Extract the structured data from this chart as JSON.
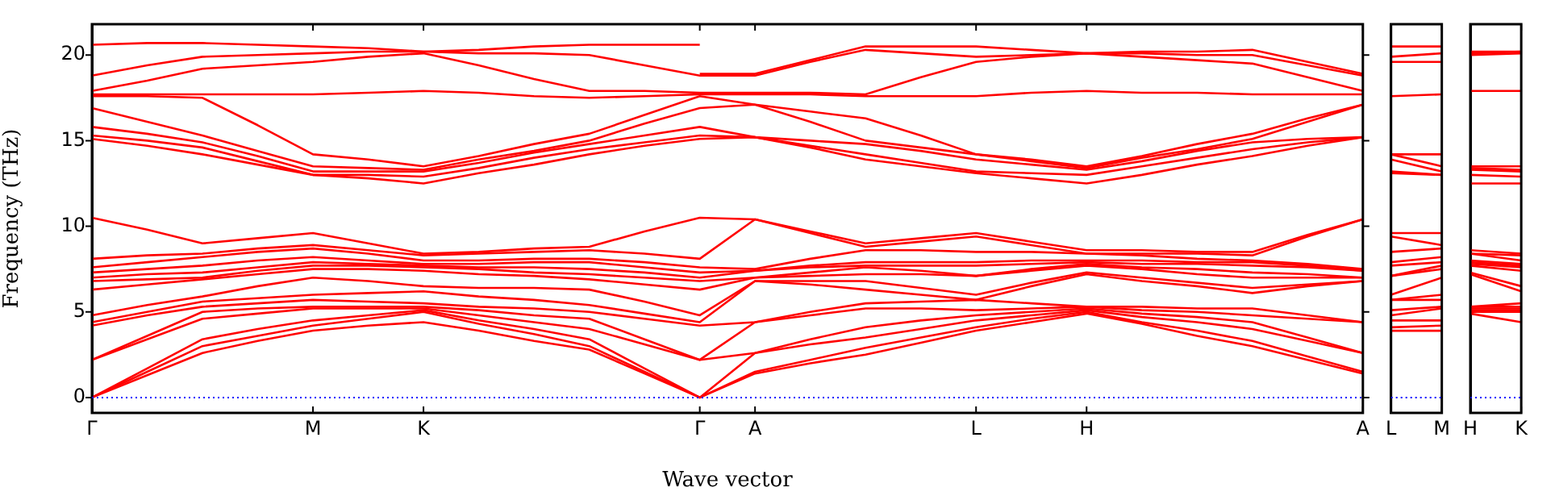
{
  "chart_data": [
    {
      "type": "line",
      "xlabel": "Wave vector",
      "ylabel": "Frequency (THz)",
      "categories": [
        "Γ",
        null,
        null,
        null,
        "M",
        null,
        "K",
        null,
        null,
        null,
        null,
        "Γ",
        "A",
        null,
        null,
        null,
        "L",
        null,
        "H",
        null,
        null,
        null,
        null,
        "A"
      ],
      "ylim": [
        -0.9,
        21.8
      ],
      "yticks": [
        0,
        5,
        10,
        15,
        20
      ],
      "ref_lines": [
        {
          "axis": "y",
          "value": 0,
          "color": "#0000ff",
          "line_style": "dotted"
        }
      ],
      "series": [
        {
          "color": "#ff0000",
          "values": [
            0,
            1.3,
            2.6,
            3.3,
            3.9,
            4.2,
            4.4,
            3.9,
            3.3,
            2.8,
            1.4,
            0,
            1.4,
            2.0,
            2.5,
            3.2,
            3.9,
            4.4,
            4.9,
            4.3,
            3.6,
            3.0,
            2.2,
            1.4
          ]
        },
        {
          "color": "#ff0000",
          "values": [
            0,
            1.5,
            3.0,
            3.6,
            4.2,
            4.6,
            5.0,
            4.3,
            3.7,
            3.0,
            1.5,
            0,
            1.5,
            2.2,
            2.9,
            3.5,
            4.1,
            4.6,
            5.0,
            4.4,
            3.9,
            3.3,
            2.4,
            1.5
          ]
        },
        {
          "color": "#ff0000",
          "values": [
            0,
            1.7,
            3.4,
            4.0,
            4.5,
            4.8,
            5.1,
            4.5,
            4.0,
            3.4,
            1.7,
            0,
            2.6,
            3.1,
            3.5,
            4.0,
            4.5,
            4.8,
            5.1,
            4.7,
            4.4,
            4.0,
            3.3,
            2.6
          ]
        },
        {
          "color": "#ff0000",
          "values": [
            2.2,
            3.4,
            4.6,
            4.9,
            5.2,
            5.2,
            5.2,
            4.8,
            4.4,
            4.0,
            3.1,
            2.2,
            2.6,
            3.4,
            4.1,
            4.5,
            4.8,
            5.0,
            5.2,
            4.9,
            4.7,
            4.4,
            3.5,
            2.6
          ]
        },
        {
          "color": "#ff0000",
          "values": [
            2.2,
            3.6,
            5.0,
            5.2,
            5.3,
            5.3,
            5.3,
            5.1,
            4.8,
            4.6,
            3.4,
            2.2,
            4.4,
            4.8,
            5.2,
            5.2,
            5.1,
            5.2,
            5.3,
            5.1,
            5.0,
            4.8,
            4.6,
            4.4
          ]
        },
        {
          "color": "#ff0000",
          "values": [
            4.2,
            4.8,
            5.3,
            5.5,
            5.7,
            5.6,
            5.5,
            5.3,
            5.2,
            5.0,
            4.6,
            4.2,
            4.4,
            5.0,
            5.5,
            5.6,
            5.7,
            5.5,
            5.3,
            5.3,
            5.2,
            5.2,
            4.8,
            4.4
          ]
        },
        {
          "color": "#ff0000",
          "values": [
            4.4,
            5.0,
            5.6,
            5.8,
            6.0,
            6.1,
            6.2,
            5.9,
            5.7,
            5.4,
            4.9,
            4.4,
            6.8,
            6.6,
            6.3,
            6.0,
            5.7,
            6.5,
            7.2,
            6.8,
            6.5,
            6.1,
            6.5,
            6.8
          ]
        },
        {
          "color": "#ff0000",
          "values": [
            4.8,
            5.4,
            5.9,
            6.5,
            7.0,
            6.8,
            6.5,
            6.4,
            6.4,
            6.3,
            5.6,
            4.8,
            6.8,
            6.8,
            6.8,
            6.4,
            6.0,
            6.7,
            7.3,
            7.0,
            6.7,
            6.4,
            6.6,
            6.8
          ]
        },
        {
          "color": "#ff0000",
          "values": [
            6.3,
            6.6,
            6.9,
            7.2,
            7.5,
            7.5,
            7.4,
            7.2,
            7.1,
            6.9,
            6.6,
            6.3,
            7.0,
            7.1,
            7.2,
            7.2,
            7.1,
            7.4,
            7.7,
            7.5,
            7.2,
            7.0,
            7.0,
            7.0
          ]
        },
        {
          "color": "#ff0000",
          "values": [
            6.8,
            6.9,
            7.0,
            7.4,
            7.7,
            7.7,
            7.6,
            7.5,
            7.3,
            7.2,
            7.0,
            6.8,
            7.0,
            7.3,
            7.6,
            7.4,
            7.1,
            7.5,
            7.8,
            7.6,
            7.5,
            7.3,
            7.2,
            7.0
          ]
        },
        {
          "color": "#ff0000",
          "values": [
            7.0,
            7.2,
            7.3,
            7.6,
            7.9,
            7.8,
            7.7,
            7.6,
            7.6,
            7.5,
            7.3,
            7.0,
            7.4,
            7.6,
            7.7,
            7.7,
            7.7,
            7.8,
            7.9,
            7.8,
            7.8,
            7.7,
            7.6,
            7.4
          ]
        },
        {
          "color": "#ff0000",
          "values": [
            7.3,
            7.5,
            7.7,
            8.0,
            8.2,
            8.0,
            7.8,
            7.8,
            7.9,
            7.9,
            7.6,
            7.3,
            7.4,
            7.7,
            7.9,
            7.9,
            7.9,
            8.0,
            8.0,
            8.0,
            7.9,
            7.9,
            7.7,
            7.4
          ]
        },
        {
          "color": "#ff0000",
          "values": [
            7.6,
            7.9,
            8.2,
            8.5,
            8.7,
            8.4,
            8.0,
            8.0,
            8.1,
            8.1,
            7.9,
            7.6,
            7.5,
            8.1,
            8.6,
            8.6,
            8.5,
            8.5,
            8.4,
            8.3,
            8.1,
            8.0,
            7.8,
            7.5
          ]
        },
        {
          "color": "#ff0000",
          "values": [
            8.1,
            8.3,
            8.4,
            8.7,
            8.9,
            8.6,
            8.3,
            8.4,
            8.5,
            8.6,
            8.4,
            8.1,
            10.4,
            9.6,
            8.8,
            9.1,
            9.4,
            8.9,
            8.4,
            8.4,
            8.4,
            8.3,
            9.4,
            10.4
          ]
        },
        {
          "color": "#ff0000",
          "values": [
            10.5,
            9.8,
            9.0,
            9.3,
            9.6,
            9.0,
            8.4,
            8.5,
            8.7,
            8.8,
            9.7,
            10.5,
            10.4,
            9.7,
            9.0,
            9.3,
            9.6,
            9.1,
            8.6,
            8.6,
            8.5,
            8.5,
            9.5,
            10.4
          ]
        },
        {
          "color": "#ff0000",
          "values": [
            15.1,
            14.7,
            14.2,
            13.6,
            13.0,
            12.8,
            12.5,
            13.1,
            13.6,
            14.2,
            14.7,
            15.1,
            15.2,
            14.6,
            13.9,
            13.5,
            13.1,
            12.8,
            12.5,
            13.0,
            13.6,
            14.1,
            14.7,
            15.2
          ]
        },
        {
          "color": "#ff0000",
          "values": [
            15.3,
            15.0,
            14.6,
            13.8,
            13.0,
            13.0,
            12.9,
            13.4,
            14.0,
            14.5,
            14.9,
            15.3,
            15.2,
            14.7,
            14.2,
            13.7,
            13.2,
            13.1,
            13.0,
            13.5,
            14.0,
            14.5,
            14.9,
            15.2
          ]
        },
        {
          "color": "#ff0000",
          "values": [
            15.8,
            15.4,
            14.9,
            14.1,
            13.2,
            13.2,
            13.2,
            13.7,
            14.3,
            14.8,
            15.3,
            15.8,
            15.2,
            15.0,
            14.8,
            14.4,
            13.9,
            13.6,
            13.3,
            13.8,
            14.4,
            14.9,
            15.1,
            15.2
          ]
        },
        {
          "color": "#ff0000",
          "values": [
            16.9,
            16.1,
            15.3,
            14.4,
            13.5,
            13.4,
            13.3,
            13.9,
            14.4,
            15.0,
            16.0,
            16.9,
            17.1,
            16.1,
            15.0,
            14.6,
            14.2,
            13.8,
            13.4,
            14.0,
            14.5,
            15.1,
            16.1,
            17.1
          ]
        },
        {
          "color": "#ff0000",
          "values": [
            17.6,
            17.6,
            17.5,
            15.9,
            14.2,
            13.9,
            13.5,
            14.1,
            14.8,
            15.4,
            16.5,
            17.6,
            17.1,
            16.7,
            16.3,
            15.3,
            14.2,
            13.9,
            13.5,
            14.1,
            14.8,
            15.4,
            16.3,
            17.1
          ]
        },
        {
          "color": "#ff0000",
          "values": [
            17.7,
            17.7,
            17.7,
            17.7,
            17.7,
            17.8,
            17.9,
            17.8,
            17.6,
            17.5,
            17.6,
            17.7,
            17.7,
            17.7,
            17.6,
            17.6,
            17.6,
            17.8,
            17.9,
            17.8,
            17.8,
            17.7,
            17.7,
            17.7
          ]
        },
        {
          "color": "#ff0000",
          "values": [
            17.9,
            18.5,
            19.2,
            19.4,
            19.6,
            19.9,
            20.1,
            19.4,
            18.6,
            17.9,
            17.9,
            17.8,
            17.8,
            17.8,
            17.7,
            18.7,
            19.6,
            19.9,
            20.1,
            19.9,
            19.7,
            19.5,
            18.7,
            17.9
          ]
        },
        {
          "color": "#ff0000",
          "values": [
            18.8,
            19.4,
            19.9,
            20.0,
            20.1,
            20.2,
            20.2,
            20.1,
            20.1,
            20.0,
            19.4,
            18.8,
            18.8,
            19.6,
            20.3,
            20.1,
            19.9,
            20.0,
            20.1,
            20.1,
            20.0,
            20.0,
            19.4,
            18.8
          ]
        },
        {
          "color": "#ff0000",
          "values": [
            20.6,
            20.7,
            20.7,
            20.6,
            20.5,
            20.4,
            20.2,
            20.3,
            20.5,
            20.6,
            20.6,
            20.6,
            null,
            null,
            null,
            null,
            null,
            null,
            null,
            null,
            null,
            null,
            null,
            null
          ]
        },
        {
          "color": "#ff0000",
          "values": [
            null,
            null,
            null,
            null,
            null,
            null,
            null,
            null,
            null,
            null,
            null,
            18.9,
            18.9,
            19.7,
            20.5,
            20.5,
            20.5,
            20.3,
            20.1,
            20.2,
            20.2,
            20.3,
            19.6,
            18.9
          ]
        }
      ]
    },
    {
      "type": "line",
      "categories": [
        "L",
        "M"
      ],
      "ylim": [
        -0.9,
        21.8
      ],
      "yticks": [
        0,
        5,
        10,
        15,
        20
      ],
      "tick_labels": "x",
      "ref_lines": [
        {
          "axis": "y",
          "value": 0,
          "color": "#0000ff",
          "line_style": "dotted"
        }
      ],
      "series": [
        {
          "color": "#ff0000",
          "values": [
            3.9,
            3.9
          ]
        },
        {
          "color": "#ff0000",
          "values": [
            4.1,
            4.2
          ]
        },
        {
          "color": "#ff0000",
          "values": [
            4.5,
            4.5
          ]
        },
        {
          "color": "#ff0000",
          "values": [
            4.8,
            5.2
          ]
        },
        {
          "color": "#ff0000",
          "values": [
            5.1,
            5.3
          ]
        },
        {
          "color": "#ff0000",
          "values": [
            5.7,
            5.7
          ]
        },
        {
          "color": "#ff0000",
          "values": [
            5.7,
            6.0
          ]
        },
        {
          "color": "#ff0000",
          "values": [
            6.0,
            7.0
          ]
        },
        {
          "color": "#ff0000",
          "values": [
            7.1,
            7.5
          ]
        },
        {
          "color": "#ff0000",
          "values": [
            7.1,
            7.7
          ]
        },
        {
          "color": "#ff0000",
          "values": [
            7.7,
            7.9
          ]
        },
        {
          "color": "#ff0000",
          "values": [
            7.9,
            8.2
          ]
        },
        {
          "color": "#ff0000",
          "values": [
            8.5,
            8.7
          ]
        },
        {
          "color": "#ff0000",
          "values": [
            9.4,
            8.9
          ]
        },
        {
          "color": "#ff0000",
          "values": [
            9.6,
            9.6
          ]
        },
        {
          "color": "#ff0000",
          "values": [
            13.1,
            13.0
          ]
        },
        {
          "color": "#ff0000",
          "values": [
            13.2,
            13.0
          ]
        },
        {
          "color": "#ff0000",
          "values": [
            13.9,
            13.2
          ]
        },
        {
          "color": "#ff0000",
          "values": [
            14.2,
            13.5
          ]
        },
        {
          "color": "#ff0000",
          "values": [
            14.2,
            14.2
          ]
        },
        {
          "color": "#ff0000",
          "values": [
            17.6,
            17.7
          ]
        },
        {
          "color": "#ff0000",
          "values": [
            19.6,
            19.6
          ]
        },
        {
          "color": "#ff0000",
          "values": [
            19.9,
            20.1
          ]
        },
        {
          "color": "#ff0000",
          "values": [
            20.5,
            20.5
          ]
        }
      ]
    },
    {
      "type": "line",
      "categories": [
        "H",
        "K"
      ],
      "ylim": [
        -0.9,
        21.8
      ],
      "yticks": [
        0,
        5,
        10,
        15,
        20
      ],
      "tick_labels": "x",
      "ref_lines": [
        {
          "axis": "y",
          "value": 0,
          "color": "#0000ff",
          "line_style": "dotted"
        }
      ],
      "series": [
        {
          "color": "#ff0000",
          "values": [
            4.9,
            4.4
          ]
        },
        {
          "color": "#ff0000",
          "values": [
            5.0,
            5.0
          ]
        },
        {
          "color": "#ff0000",
          "values": [
            5.1,
            5.1
          ]
        },
        {
          "color": "#ff0000",
          "values": [
            5.2,
            5.2
          ]
        },
        {
          "color": "#ff0000",
          "values": [
            5.3,
            5.3
          ]
        },
        {
          "color": "#ff0000",
          "values": [
            5.3,
            5.5
          ]
        },
        {
          "color": "#ff0000",
          "values": [
            7.2,
            6.2
          ]
        },
        {
          "color": "#ff0000",
          "values": [
            7.3,
            6.5
          ]
        },
        {
          "color": "#ff0000",
          "values": [
            7.7,
            7.4
          ]
        },
        {
          "color": "#ff0000",
          "values": [
            7.8,
            7.6
          ]
        },
        {
          "color": "#ff0000",
          "values": [
            7.9,
            7.7
          ]
        },
        {
          "color": "#ff0000",
          "values": [
            8.0,
            7.8
          ]
        },
        {
          "color": "#ff0000",
          "values": [
            8.4,
            8.0
          ]
        },
        {
          "color": "#ff0000",
          "values": [
            8.4,
            8.3
          ]
        },
        {
          "color": "#ff0000",
          "values": [
            8.6,
            8.4
          ]
        },
        {
          "color": "#ff0000",
          "values": [
            12.5,
            12.5
          ]
        },
        {
          "color": "#ff0000",
          "values": [
            13.0,
            12.9
          ]
        },
        {
          "color": "#ff0000",
          "values": [
            13.3,
            13.2
          ]
        },
        {
          "color": "#ff0000",
          "values": [
            13.4,
            13.3
          ]
        },
        {
          "color": "#ff0000",
          "values": [
            13.5,
            13.5
          ]
        },
        {
          "color": "#ff0000",
          "values": [
            17.9,
            17.9
          ]
        },
        {
          "color": "#ff0000",
          "values": [
            20.0,
            20.1
          ]
        },
        {
          "color": "#ff0000",
          "values": [
            20.1,
            20.2
          ]
        },
        {
          "color": "#ff0000",
          "values": [
            20.2,
            20.2
          ]
        }
      ]
    }
  ]
}
